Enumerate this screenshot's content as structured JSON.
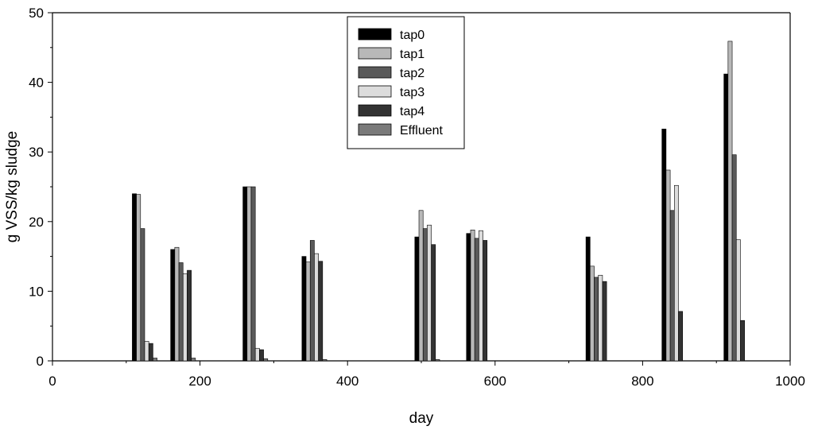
{
  "chart_data": {
    "type": "bar",
    "title": "",
    "xlabel": "day",
    "ylabel": "g VSS/kg sludge",
    "xlim": [
      0,
      1000
    ],
    "ylim": [
      0,
      50
    ],
    "x_ticks": [
      0,
      200,
      400,
      600,
      800,
      1000
    ],
    "y_ticks": [
      0,
      10,
      20,
      30,
      40,
      50
    ],
    "grid": false,
    "legend_position": "top-center",
    "x": [
      125,
      177,
      275,
      355,
      508,
      578,
      740,
      843,
      927
    ],
    "series": [
      {
        "name": "tap0",
        "color": "#000000",
        "values": [
          24.0,
          16.0,
          25.0,
          15.0,
          17.8,
          18.3,
          17.8,
          33.3,
          41.2
        ]
      },
      {
        "name": "tap1",
        "color": "#b8b8b8",
        "values": [
          23.9,
          16.3,
          25.0,
          14.2,
          21.6,
          18.8,
          13.6,
          27.4,
          45.9
        ]
      },
      {
        "name": "tap2",
        "color": "#5a5a5a",
        "values": [
          19.0,
          14.1,
          25.0,
          17.3,
          19.0,
          17.6,
          12.0,
          21.6,
          29.6
        ]
      },
      {
        "name": "tap3",
        "color": "#dcdcdc",
        "values": [
          2.8,
          12.5,
          1.8,
          15.4,
          19.5,
          18.7,
          12.3,
          25.2,
          17.4
        ]
      },
      {
        "name": "tap4",
        "color": "#333333",
        "values": [
          2.5,
          13.0,
          1.6,
          14.3,
          16.7,
          17.3,
          11.4,
          7.1,
          5.8
        ]
      },
      {
        "name": "Effluent",
        "color": "#7a7a7a",
        "values": [
          0.4,
          0.4,
          0.3,
          0.2,
          0.2,
          0,
          0,
          0,
          0
        ]
      }
    ]
  }
}
